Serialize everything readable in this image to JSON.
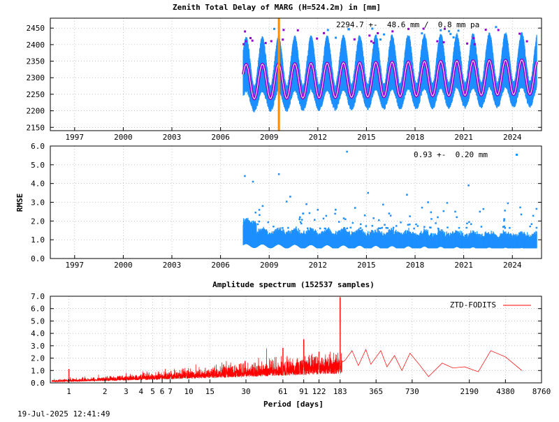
{
  "colors": {
    "points": "#1e90ff",
    "fit": "#9400d3",
    "fit_core": "#ffffff",
    "marker": "#ff8c00",
    "spectrum": "#ff0000",
    "grid": "#a0a0a0"
  },
  "footer": {
    "timestamp": "19-Jul-2025 12:41:49"
  },
  "chart_data": [
    {
      "type": "scatter",
      "title": "Zenith Total Delay of MARG (H=524.2m) in [mm]",
      "annotation": "2294.7 +-  48.6 mm /  0.8 mm pa",
      "ylabel": "",
      "xlim": [
        1995.5,
        2025.8
      ],
      "ylim": [
        2140,
        2480
      ],
      "x_ticks": [
        1997,
        2000,
        2003,
        2006,
        2009,
        2012,
        2015,
        2018,
        2021,
        2024
      ],
      "y_ticks": [
        2150,
        2200,
        2250,
        2300,
        2350,
        2400,
        2450
      ],
      "data_start": 2007.4,
      "data_end": 2025.5,
      "mean": 2294.7,
      "std": 48.6,
      "trend_mm_per_year": 0.8,
      "seasonal_amplitude": 52,
      "phase_peak_fraction_of_year": 0.58,
      "marker_year": 2009.6,
      "grid": true
    },
    {
      "type": "scatter",
      "ylabel": "RMSE",
      "annotation": "0.93 +-  0.20 mm",
      "xlim": [
        1995.5,
        2025.8
      ],
      "ylim": [
        0,
        6
      ],
      "x_ticks": [
        1997,
        2000,
        2003,
        2006,
        2009,
        2012,
        2015,
        2018,
        2021,
        2024
      ],
      "y_ticks": [
        "0.0",
        "1.0",
        "2.0",
        "3.0",
        "4.0",
        "5.0",
        "6.0"
      ],
      "mean": 0.93,
      "std": 0.2,
      "data_start": 2007.4,
      "data_end": 2025.5,
      "outliers": [
        [
          2013.8,
          5.7
        ],
        [
          2007.5,
          4.4
        ],
        [
          2009.6,
          4.5
        ],
        [
          2008.0,
          4.1
        ],
        [
          2021.3,
          3.9
        ],
        [
          2017.5,
          3.4
        ],
        [
          2010.3,
          3.3
        ],
        [
          2018.8,
          3.0
        ],
        [
          2015.1,
          3.5
        ],
        [
          2012.0,
          2.6
        ],
        [
          2011.3,
          2.9
        ],
        [
          2014.3,
          2.7
        ],
        [
          2013.1,
          2.6
        ],
        [
          2022.0,
          2.5
        ],
        [
          2019.4,
          2.2
        ],
        [
          2016.4,
          2.4
        ],
        [
          2023.5,
          2.1
        ],
        [
          2010.9,
          2.2
        ],
        [
          2008.6,
          2.8
        ],
        [
          2014.9,
          2.3
        ]
      ],
      "grid": true
    },
    {
      "type": "line",
      "title": "Amplitude spectrum (152537 samples)",
      "xlabel": "Period [days]",
      "legend": "ZTD-FODITS",
      "legend_position": "top-right",
      "xscale": "log",
      "xlim": [
        0.7,
        8760
      ],
      "ylim": [
        0,
        7
      ],
      "x_ticks": [
        1,
        2,
        3,
        4,
        5,
        6,
        7,
        10,
        15,
        30,
        61,
        91,
        122,
        183,
        365,
        730,
        2190,
        4380,
        8760
      ],
      "y_ticks": [
        "0.0",
        "1.0",
        "2.0",
        "3.0",
        "4.0",
        "5.0",
        "6.0",
        "7.0"
      ],
      "peaks": [
        [
          183,
          6.9
        ],
        [
          365,
          2.8
        ],
        [
          122,
          2.5
        ],
        [
          91,
          3.5
        ],
        [
          61,
          2.8
        ],
        [
          1,
          1.1
        ]
      ],
      "low_freq_points": [
        [
          200,
          1.8
        ],
        [
          230,
          2.6
        ],
        [
          260,
          1.4
        ],
        [
          300,
          2.7
        ],
        [
          330,
          1.5
        ],
        [
          400,
          2.6
        ],
        [
          450,
          1.3
        ],
        [
          520,
          2.2
        ],
        [
          600,
          1.0
        ],
        [
          700,
          2.4
        ],
        [
          850,
          1.4
        ],
        [
          1000,
          0.5
        ],
        [
          1300,
          1.6
        ],
        [
          1600,
          1.2
        ],
        [
          2000,
          1.3
        ],
        [
          2600,
          0.9
        ],
        [
          3300,
          2.6
        ],
        [
          4380,
          2.1
        ],
        [
          6000,
          1.0
        ]
      ],
      "grid": true
    }
  ]
}
